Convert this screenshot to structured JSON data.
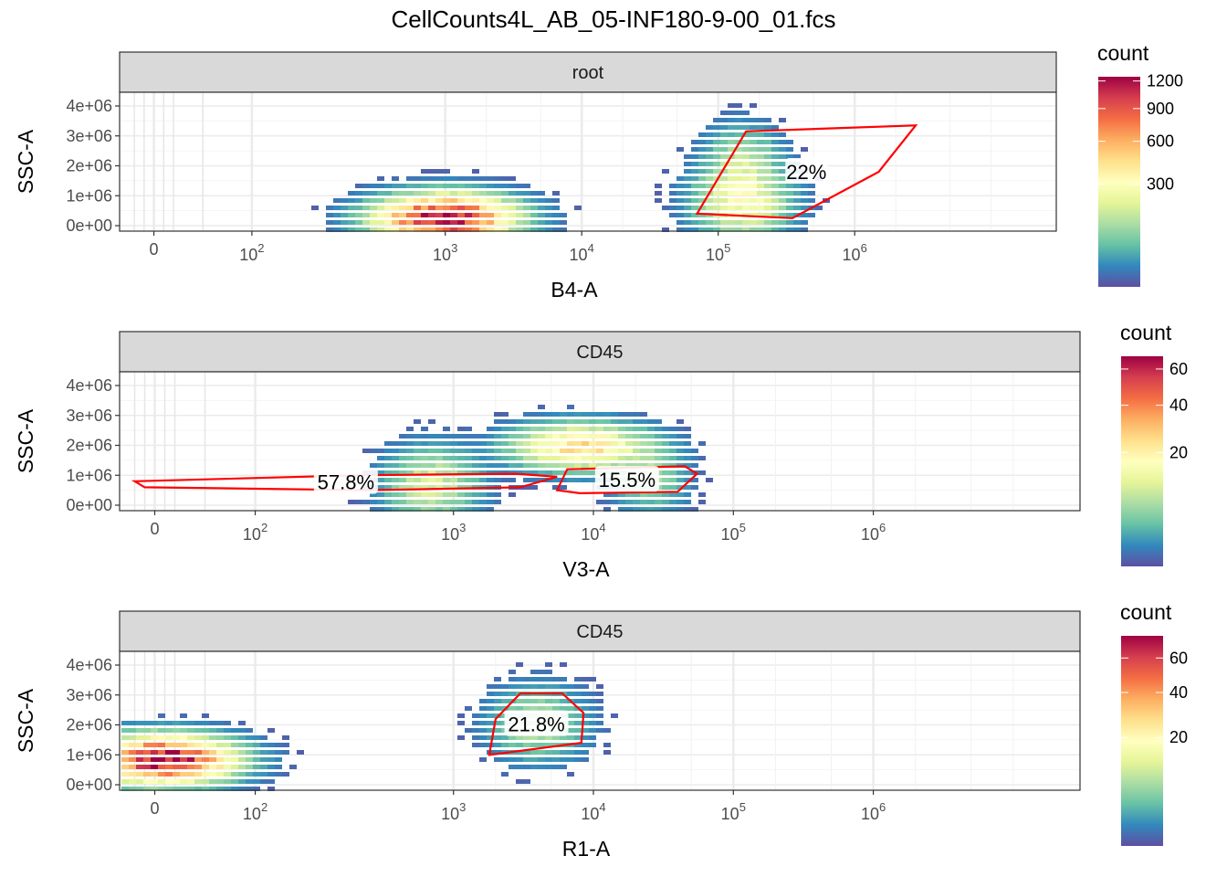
{
  "title": "CellCounts4L_AB_05-INF180-9-00_01.fcs",
  "colors": {
    "gate": "#ff0000",
    "strip_fill": "#d9d9d9",
    "grid_major": "#ebebeb",
    "palette_spectral_low_to_high": [
      "#5e4fa2",
      "#3288bd",
      "#66c2a5",
      "#abdda4",
      "#e6f598",
      "#ffffbf",
      "#fee08b",
      "#fdae61",
      "#f46d43",
      "#d53e4f",
      "#9e0142"
    ]
  },
  "chart_data": [
    {
      "type": "heatmap",
      "panel_label": "root",
      "xlabel": "B4-A",
      "ylabel": "SSC-A",
      "x_scale": "biexponential",
      "x_ticks": [
        "0",
        "10^2",
        "10^3",
        "10^4",
        "10^5",
        "10^6"
      ],
      "y_ticks": [
        "0e+00",
        "1e+06",
        "2e+06",
        "3e+06",
        "4e+06"
      ],
      "ylim": [
        0,
        4300000
      ],
      "grid": true,
      "legend": {
        "title": "count",
        "labels": [
          "1200",
          "900",
          "600",
          "300"
        ],
        "max": 1250,
        "placement": "right"
      },
      "gates": [
        {
          "label": "22%",
          "percent": 22.0,
          "vertices": [
            [
              70000,
              400000
            ],
            [
              160000,
              3150000
            ],
            [
              2800000,
              3350000
            ],
            [
              1500000,
              1800000
            ],
            [
              350000,
              250000
            ]
          ]
        }
      ],
      "populations": [
        {
          "x": 1000,
          "y": 200000,
          "peak_count": 1250
        },
        {
          "x": 150000,
          "y": 800000,
          "peak_count": 300
        },
        {
          "x": 150000,
          "y": 2200000,
          "peak_count": 120
        }
      ]
    },
    {
      "type": "heatmap",
      "panel_label": "CD45",
      "xlabel": "V3-A",
      "ylabel": "SSC-A",
      "x_scale": "biexponential",
      "x_ticks": [
        "0",
        "10^2",
        "10^3",
        "10^4",
        "10^5",
        "10^6"
      ],
      "y_ticks": [
        "0e+00",
        "1e+06",
        "2e+06",
        "3e+06",
        "4e+06"
      ],
      "ylim": [
        0,
        4300000
      ],
      "grid": true,
      "legend": {
        "title": "count",
        "labels": [
          "60",
          "40",
          "20"
        ],
        "max": 68,
        "placement": "right"
      },
      "gates": [
        {
          "label": "57.8%",
          "percent": 57.8,
          "vertices": [
            [
              -20,
              800000
            ],
            [
              200,
              1000000
            ],
            [
              2800,
              1050000
            ],
            [
              5500,
              950000
            ],
            [
              3000,
              600000
            ],
            [
              250,
              500000
            ],
            [
              -10,
              600000
            ]
          ]
        },
        {
          "label": "15.5%",
          "percent": 15.5,
          "vertices": [
            [
              5500,
              500000
            ],
            [
              6500,
              1200000
            ],
            [
              45000,
              1300000
            ],
            [
              55000,
              1050000
            ],
            [
              40000,
              450000
            ],
            [
              8000,
              400000
            ]
          ]
        }
      ],
      "populations": [
        {
          "x": 8000,
          "y": 1900000,
          "peak_count": 25
        },
        {
          "x": 700,
          "y": 650000,
          "peak_count": 10
        },
        {
          "x": 25000,
          "y": 900000,
          "peak_count": 6
        }
      ]
    },
    {
      "type": "heatmap",
      "panel_label": "CD45",
      "xlabel": "R1-A",
      "ylabel": "SSC-A",
      "x_scale": "biexponential",
      "x_ticks": [
        "0",
        "10^2",
        "10^3",
        "10^4",
        "10^5",
        "10^6"
      ],
      "y_ticks": [
        "0e+00",
        "1e+06",
        "2e+06",
        "3e+06",
        "4e+06"
      ],
      "ylim": [
        0,
        4300000
      ],
      "grid": true,
      "legend": {
        "title": "count",
        "labels": [
          "60",
          "40",
          "20"
        ],
        "max": 75,
        "placement": "right"
      },
      "gates": [
        {
          "label": "21.8%",
          "percent": 21.8,
          "vertices": [
            [
              1800,
              1000000
            ],
            [
              2000,
              2200000
            ],
            [
              3000,
              3050000
            ],
            [
              6000,
              3050000
            ],
            [
              8500,
              2400000
            ],
            [
              8200,
              1400000
            ]
          ]
        }
      ],
      "populations": [
        {
          "x": 10,
          "y": 800000,
          "peak_count": 75
        },
        {
          "x": 4000,
          "y": 2000000,
          "peak_count": 8
        }
      ]
    }
  ]
}
